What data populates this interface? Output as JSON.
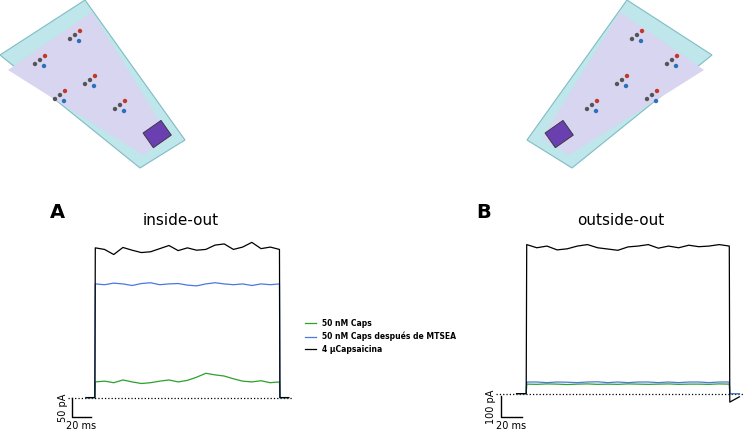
{
  "chart_data": [
    {
      "type": "line",
      "panel_label": "A",
      "title": "inside-out",
      "x": [
        -10,
        -0.5,
        0,
        10,
        20,
        30,
        40,
        50,
        60,
        70,
        80,
        90,
        100,
        110,
        120,
        130,
        140,
        150,
        160,
        170,
        180,
        190,
        200,
        200.5,
        210
      ],
      "series": [
        {
          "name": "50 nM Caps",
          "color": "#2ca02c",
          "values": [
            0,
            0,
            40,
            42,
            38,
            45,
            40,
            36,
            38,
            42,
            45,
            40,
            44,
            52,
            62,
            58,
            55,
            48,
            42,
            40,
            43,
            38,
            40,
            0,
            0
          ]
        },
        {
          "name": "50 nM Caps después de MTSEA",
          "color": "#4a78e0",
          "values": [
            0,
            0,
            290,
            288,
            292,
            290,
            286,
            291,
            293,
            288,
            290,
            291,
            287,
            285,
            290,
            293,
            290,
            288,
            290,
            286,
            290,
            288,
            290,
            0,
            0
          ]
        },
        {
          "name": "4 µCapsaicina",
          "color": "#000000",
          "values": [
            0,
            0,
            382,
            378,
            365,
            383,
            376,
            370,
            372,
            380,
            388,
            375,
            382,
            376,
            378,
            389,
            392,
            378,
            384,
            396,
            380,
            384,
            378,
            0,
            0
          ]
        }
      ],
      "xlim": [
        -30,
        215
      ],
      "ylim": [
        -60,
        420
      ],
      "tick_labels": false,
      "legend": "center left",
      "baseline": 0,
      "scale_bar": {
        "x": 20,
        "x_label": "20 ms",
        "y": 50,
        "y_label": "50 pA"
      }
    },
    {
      "type": "line",
      "panel_label": "B",
      "title": "outside-out",
      "x": [
        -10,
        -0.5,
        0,
        10,
        20,
        30,
        40,
        50,
        60,
        70,
        80,
        90,
        100,
        110,
        120,
        130,
        140,
        150,
        160,
        170,
        180,
        190,
        200,
        200.5,
        210
      ],
      "series": [
        {
          "name": "50 nM Caps",
          "color": "#2ca02c",
          "values": [
            0,
            0,
            45,
            44,
            46,
            45,
            43,
            45,
            46,
            44,
            45,
            44,
            46,
            45,
            44,
            45,
            46,
            44,
            45,
            45,
            44,
            46,
            45,
            0,
            0
          ]
        },
        {
          "name": "50 nM Caps después de MTSEA",
          "color": "#4a78e0",
          "values": [
            0,
            0,
            55,
            55,
            52,
            55,
            54,
            52,
            55,
            56,
            52,
            55,
            52,
            55,
            55,
            52,
            55,
            52,
            55,
            55,
            52,
            55,
            55,
            0,
            0
          ]
        },
        {
          "name": "4 µCapsaicina",
          "color": "#000000",
          "values": [
            0,
            0,
            705,
            690,
            698,
            680,
            685,
            698,
            705,
            690,
            684,
            678,
            694,
            698,
            705,
            688,
            698,
            690,
            702,
            695,
            698,
            705,
            698,
            -40,
            -15
          ]
        }
      ],
      "xlim": [
        -30,
        215
      ],
      "ylim": [
        -130,
        760
      ],
      "tick_labels": false,
      "baseline": 0,
      "scale_bar": {
        "x": 20,
        "x_label": "20 ms",
        "y": 100,
        "y_label": "100 pA"
      }
    }
  ]
}
